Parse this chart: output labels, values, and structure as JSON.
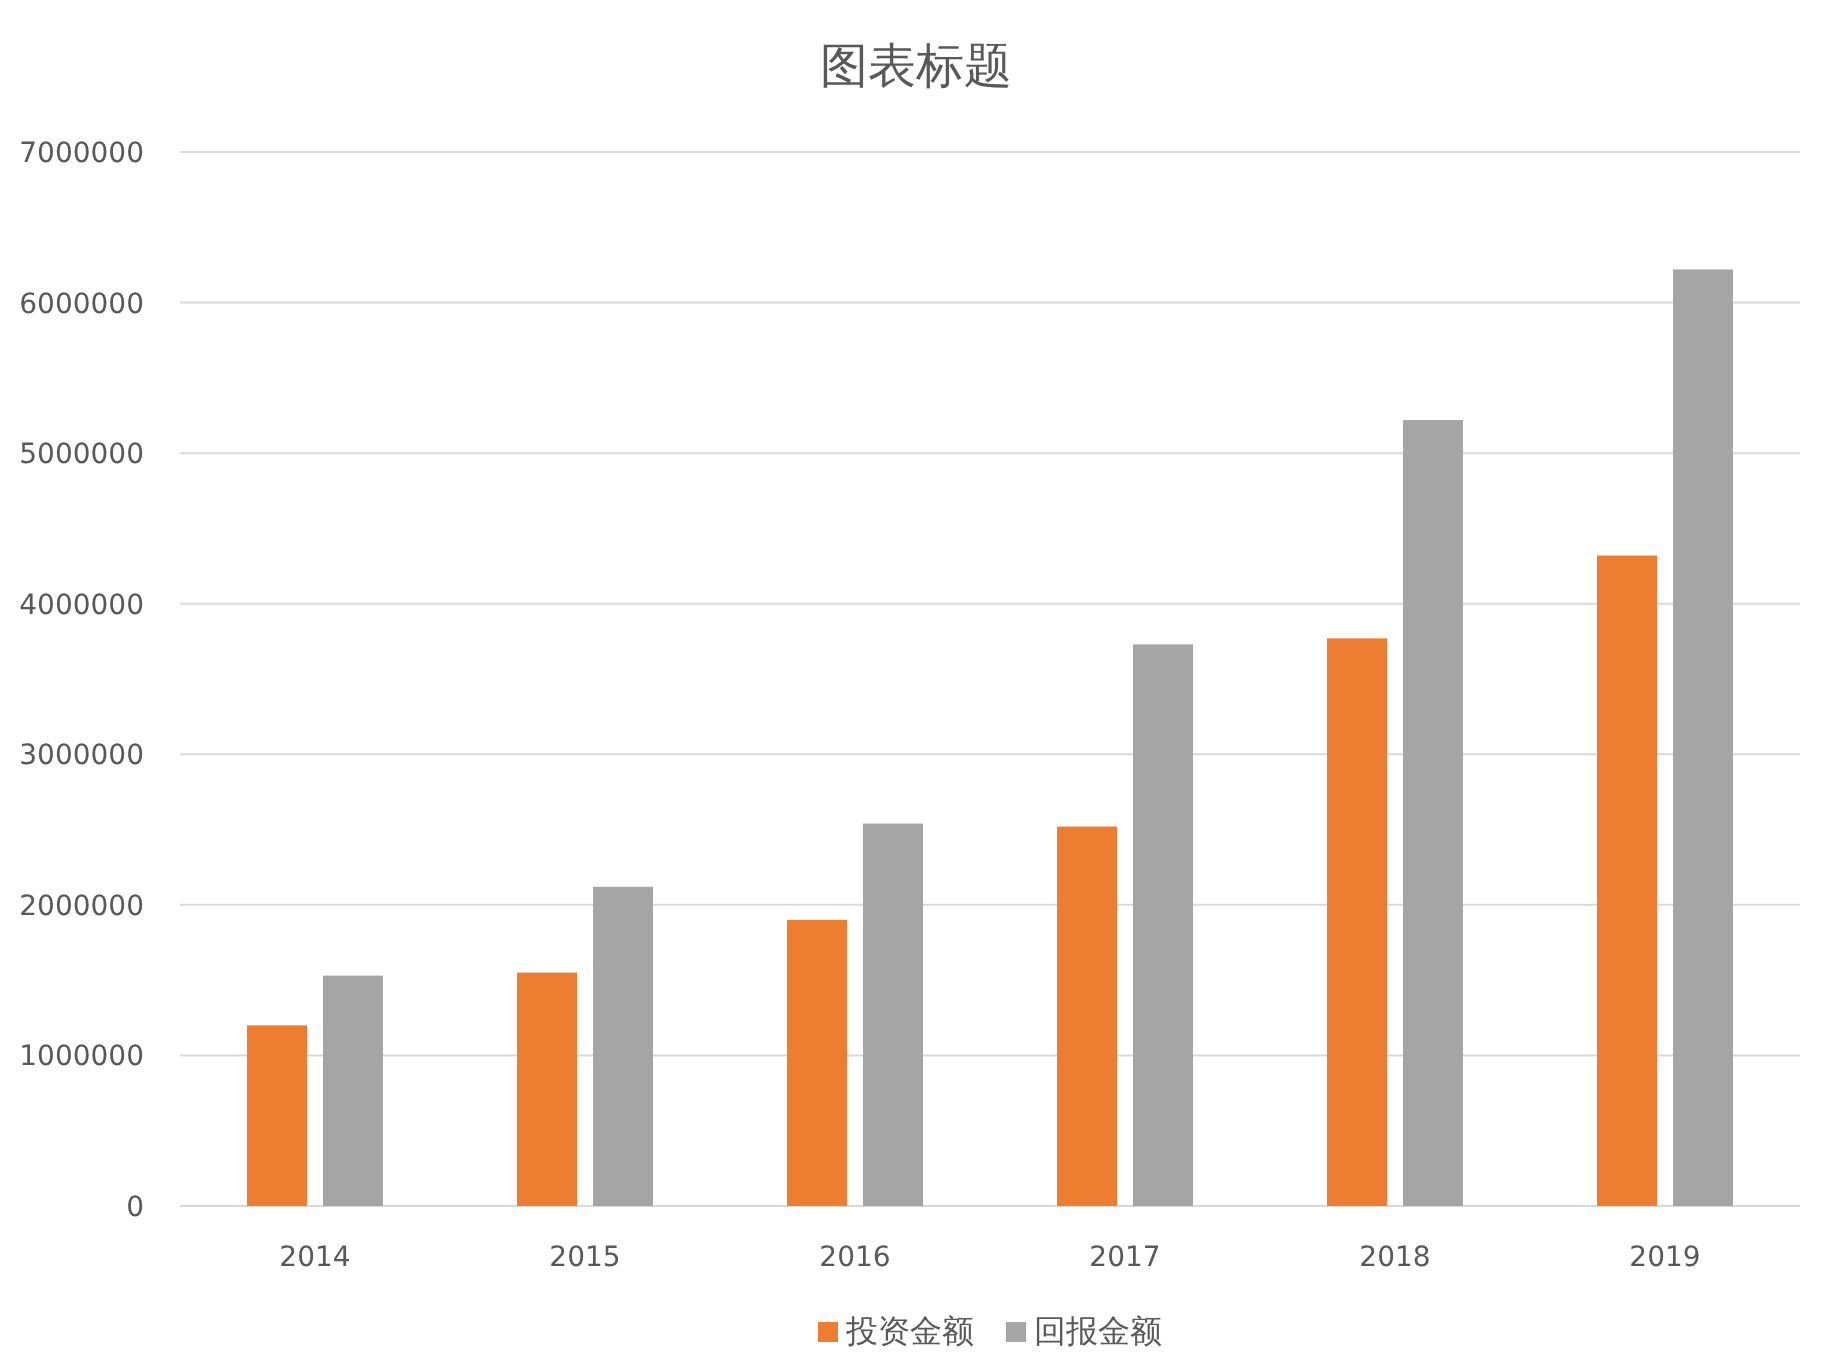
{
  "chart_data": {
    "type": "bar",
    "title": "图表标题",
    "categories": [
      "2014",
      "2015",
      "2016",
      "2017",
      "2018",
      "2019"
    ],
    "series": [
      {
        "name": "投资金额",
        "color": "#ed7d31",
        "values": [
          1200000,
          1550000,
          1900000,
          2520000,
          3770000,
          4320000
        ]
      },
      {
        "name": "回报金额",
        "color": "#a5a5a5",
        "values": [
          1530000,
          2120000,
          2540000,
          3730000,
          5220000,
          6220000
        ]
      }
    ],
    "ylim": [
      0,
      7000000
    ],
    "yticks": [
      0,
      1000000,
      2000000,
      3000000,
      4000000,
      5000000,
      6000000,
      7000000
    ],
    "grid": "y",
    "legend": "bottom"
  }
}
